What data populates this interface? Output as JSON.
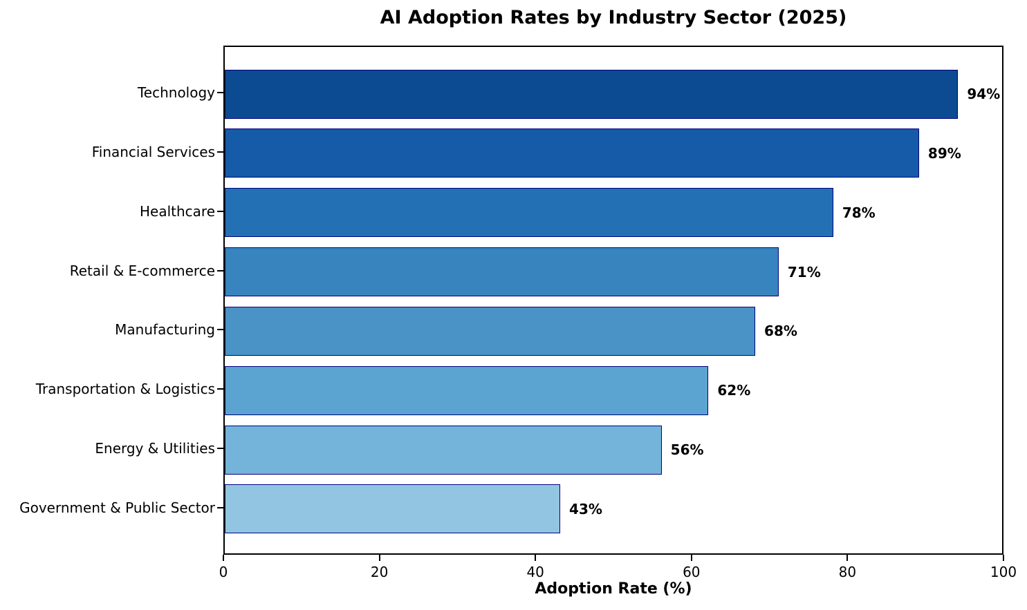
{
  "chart_data": {
    "type": "bar",
    "orientation": "horizontal",
    "title": "AI Adoption Rates by Industry Sector (2025)",
    "xlabel": "Adoption Rate (%)",
    "categories": [
      "Technology",
      "Financial Services",
      "Healthcare",
      "Retail & E-commerce",
      "Manufacturing",
      "Transportation & Logistics",
      "Energy & Utilities",
      "Government & Public Sector"
    ],
    "values": [
      94,
      89,
      78,
      71,
      68,
      62,
      56,
      43
    ],
    "value_labels": [
      "94%",
      "89%",
      "78%",
      "71%",
      "68%",
      "62%",
      "56%",
      "43%"
    ],
    "bar_colors": [
      "#0C4A92",
      "#155BA8",
      "#2470B4",
      "#3784BF",
      "#4993C7",
      "#5BA3D0",
      "#74B3DA",
      "#92C5E2"
    ],
    "bar_edge_color": "#000080",
    "axis_color": "#000000",
    "text_color": "#000000",
    "xlim": [
      0,
      100
    ],
    "xticks": [
      0,
      20,
      40,
      60,
      80,
      100
    ],
    "grid": false,
    "legend": "none"
  }
}
